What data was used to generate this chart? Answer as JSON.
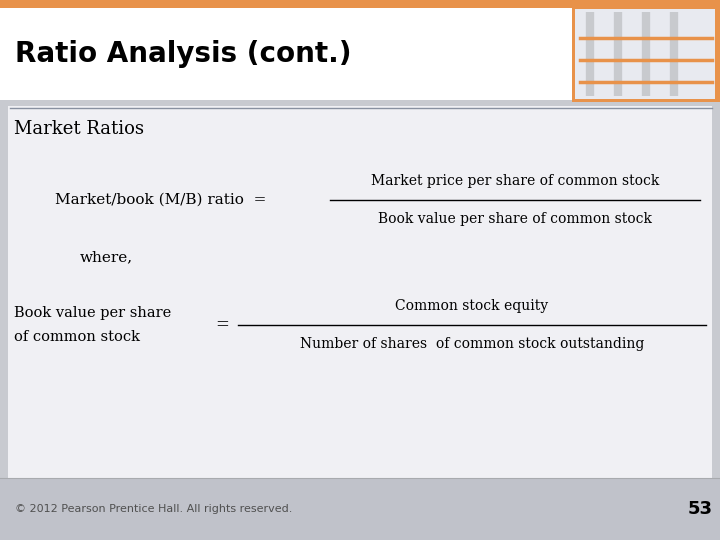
{
  "title": "Ratio Analysis (cont.)",
  "section_title": "Market Ratios",
  "formula1_lhs": "Market/book (M/B) ratio  =",
  "formula1_num": "Market price per share of common stock",
  "formula1_den": "Book value per share of common stock",
  "where_text": "where,",
  "formula2_lhs_line1": "Book value per share",
  "formula2_lhs_line2": "of common stock",
  "formula2_eq": "=",
  "formula2_num": "Common stock equity",
  "formula2_den": "Number of shares  of common stock outstanding",
  "footer": "© 2012 Pearson Prentice Hall. All rights reserved.",
  "page_num": "53",
  "header_orange": "#E8924A",
  "content_bg": "#C8CAD0",
  "main_bg": "#FFFFFF",
  "white_panel_bg": "#F0F0F4",
  "title_color": "#000000",
  "text_color": "#000000",
  "footer_bg": "#C0C2CA"
}
